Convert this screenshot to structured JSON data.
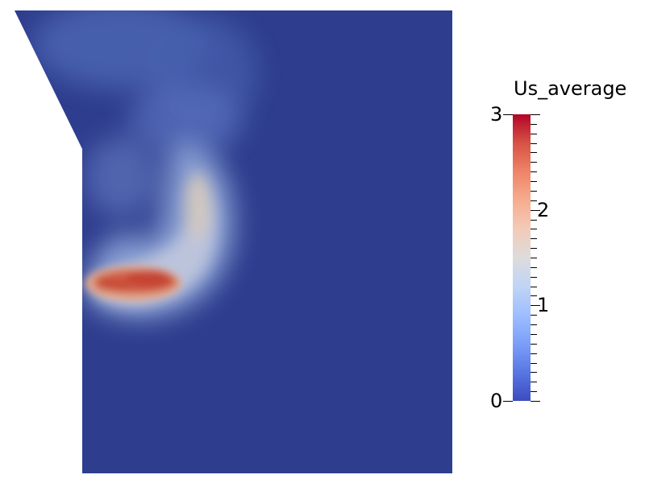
{
  "legend": {
    "title": "Us_average",
    "range": [
      0,
      3
    ],
    "major_ticks": [
      {
        "value": 0,
        "label": "0"
      },
      {
        "value": 1,
        "label": "1"
      },
      {
        "value": 2,
        "label": "2"
      },
      {
        "value": 3,
        "label": "3"
      }
    ],
    "minor_ticks_per_unit": 10,
    "colormap": "Cool to Warm",
    "colors": {
      "low": "#3b4cc0",
      "mid": "#dddcdc",
      "high": "#b40426",
      "background_field": "#2e3d8e"
    }
  }
}
